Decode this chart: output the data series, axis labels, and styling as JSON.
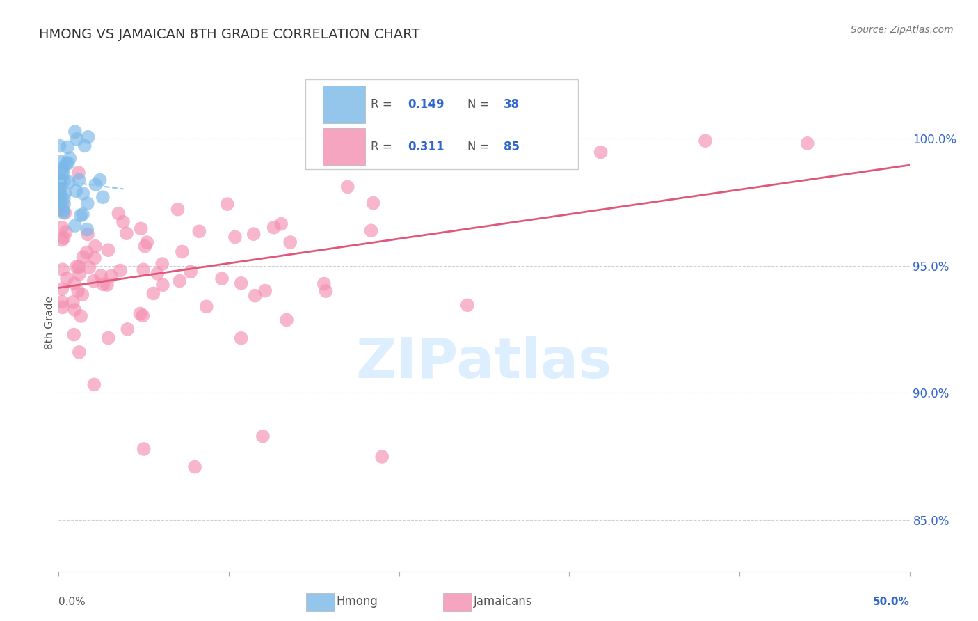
{
  "title": "HMONG VS JAMAICAN 8TH GRADE CORRELATION CHART",
  "source": "Source: ZipAtlas.com",
  "ylabel": "8th Grade",
  "xlim": [
    0.0,
    0.5
  ],
  "ylim": [
    0.83,
    1.025
  ],
  "ytick_values": [
    0.85,
    0.9,
    0.95,
    1.0
  ],
  "ytick_labels": [
    "85.0%",
    "90.0%",
    "95.0%",
    "100.0%"
  ],
  "legend_r_hmong": "0.149",
  "legend_n_hmong": "38",
  "legend_r_jamaican": "0.311",
  "legend_n_jamaican": "85",
  "hmong_color": "#7ab8e8",
  "jamaican_color": "#f48fb1",
  "jamaican_line_color": "#e0577a",
  "hmong_line_color": "#90c8f0",
  "watermark_color": "#ddeeff",
  "background_color": "#ffffff",
  "title_color": "#333333",
  "source_color": "#777777",
  "ylabel_color": "#555555",
  "right_tick_color": "#3366cc",
  "legend_text_color": "#555555",
  "legend_value_color": "#3366cc",
  "bottom_label_color": "#555555",
  "grid_color": "#d0d0d0"
}
